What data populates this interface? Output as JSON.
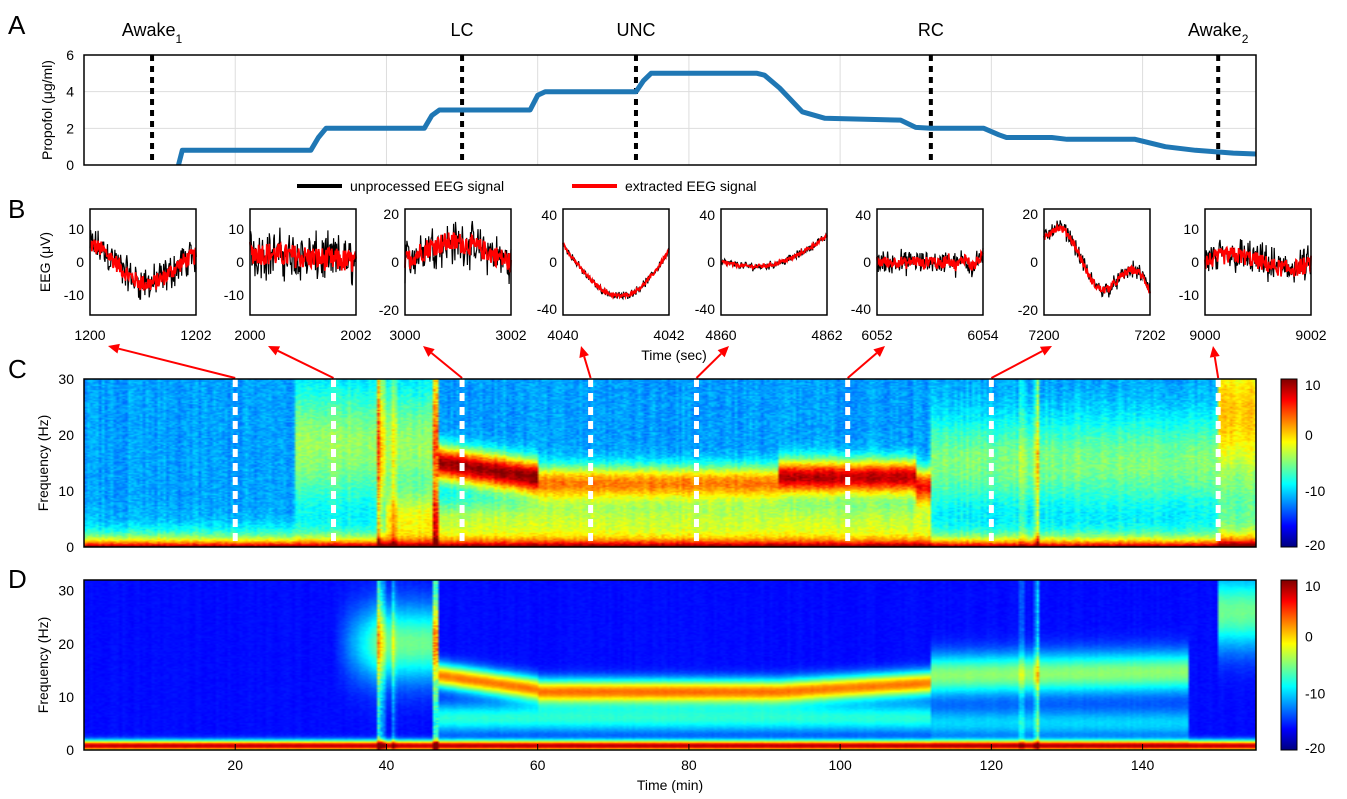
{
  "panels": {
    "a": "A",
    "b": "B",
    "c": "C",
    "d": "D"
  },
  "chart_data": [
    {
      "id": "A",
      "type": "line",
      "ylabel": "Propofol (μg/ml)",
      "xlim": [
        0,
        155
      ],
      "ylim": [
        0,
        6
      ],
      "yticks": [
        "0",
        "2",
        "4",
        "6"
      ],
      "grid": true,
      "color": "#1f77b4",
      "x": [
        12.5,
        13,
        15,
        30,
        31,
        32,
        45,
        46,
        47,
        59,
        60,
        61,
        73,
        74,
        75,
        88,
        89,
        90,
        92,
        95,
        98,
        108,
        110,
        112,
        119,
        121,
        122,
        128,
        130,
        139,
        143,
        147,
        152,
        155
      ],
      "y": [
        0,
        0.8,
        0.8,
        0.8,
        1.5,
        2.0,
        2.0,
        2.7,
        3.0,
        3.0,
        3.8,
        4.0,
        4.0,
        4.6,
        5.0,
        5.0,
        5.0,
        4.9,
        4.2,
        2.9,
        2.55,
        2.45,
        2.05,
        2.0,
        2.0,
        1.65,
        1.5,
        1.5,
        1.4,
        1.4,
        1.0,
        0.8,
        0.65,
        0.6
      ],
      "events": [
        {
          "label": "Awake",
          "sub": "1",
          "t": 9
        },
        {
          "label": "LC",
          "sub": "",
          "t": 50
        },
        {
          "label": "UNC",
          "sub": "",
          "t": 73
        },
        {
          "label": "RC",
          "sub": "",
          "t": 112
        },
        {
          "label": "Awake",
          "sub": "2",
          "t": 150
        }
      ]
    },
    {
      "id": "B",
      "type": "line",
      "ylabel": "EEG (μV)",
      "xlabel": "Time (sec)",
      "legend": [
        "unprocessed EEG signal",
        "extracted EEG signal"
      ],
      "legend_colors": [
        "#000000",
        "#ff0000"
      ],
      "insets": [
        {
          "xstart": "1200",
          "xend": "1202",
          "yticks": [
            "10",
            "0",
            "-10"
          ],
          "ylim": [
            -16,
            16
          ],
          "src": 20
        },
        {
          "xstart": "2000",
          "xend": "2002",
          "yticks": [
            "10",
            "0",
            "-10"
          ],
          "ylim": [
            -16,
            16
          ],
          "src": 33
        },
        {
          "xstart": "3000",
          "xend": "3002",
          "yticks": [
            "20",
            "0",
            "-20"
          ],
          "ylim": [
            -22,
            22
          ],
          "src": 50
        },
        {
          "xstart": "4040",
          "xend": "4042",
          "yticks": [
            "40",
            "0",
            "-40"
          ],
          "ylim": [
            -45,
            45
          ],
          "src": 67
        },
        {
          "xstart": "4860",
          "xend": "4862",
          "yticks": [
            "40",
            "0",
            "-40"
          ],
          "ylim": [
            -45,
            45
          ],
          "src": 81
        },
        {
          "xstart": "6052",
          "xend": "6054",
          "yticks": [
            "40",
            "0",
            "-40"
          ],
          "ylim": [
            -45,
            45
          ],
          "src": 101
        },
        {
          "xstart": "7200",
          "xend": "7202",
          "yticks": [
            "20",
            "0",
            "-20"
          ],
          "ylim": [
            -22,
            22
          ],
          "src": 120
        },
        {
          "xstart": "9000",
          "xend": "9002",
          "yticks": [
            "10",
            "0",
            "-10"
          ],
          "ylim": [
            -16,
            16
          ],
          "src": 150
        }
      ]
    },
    {
      "id": "C",
      "type": "heatmap",
      "ylabel": "Frequency (Hz)",
      "xlim": [
        0,
        155
      ],
      "ylim": [
        0,
        30
      ],
      "yticks": [
        "0",
        "10",
        "20",
        "30"
      ],
      "colorbar": {
        "ticks": [
          "10",
          "0",
          "-10",
          "-20"
        ],
        "range": [
          -20,
          10
        ]
      },
      "markers": [
        20,
        33,
        50,
        67,
        81,
        101,
        120,
        150
      ]
    },
    {
      "id": "D",
      "type": "heatmap",
      "ylabel": "Frequency (Hz)",
      "xlabel": "Time (min)",
      "xlim": [
        0,
        155
      ],
      "ylim": [
        0,
        32
      ],
      "xticks": [
        "20",
        "40",
        "60",
        "80",
        "100",
        "120",
        "140"
      ],
      "yticks": [
        "0",
        "10",
        "20",
        "30"
      ],
      "colorbar": {
        "ticks": [
          "10",
          "0",
          "-10",
          "-20"
        ],
        "range": [
          -20,
          10
        ]
      }
    }
  ]
}
